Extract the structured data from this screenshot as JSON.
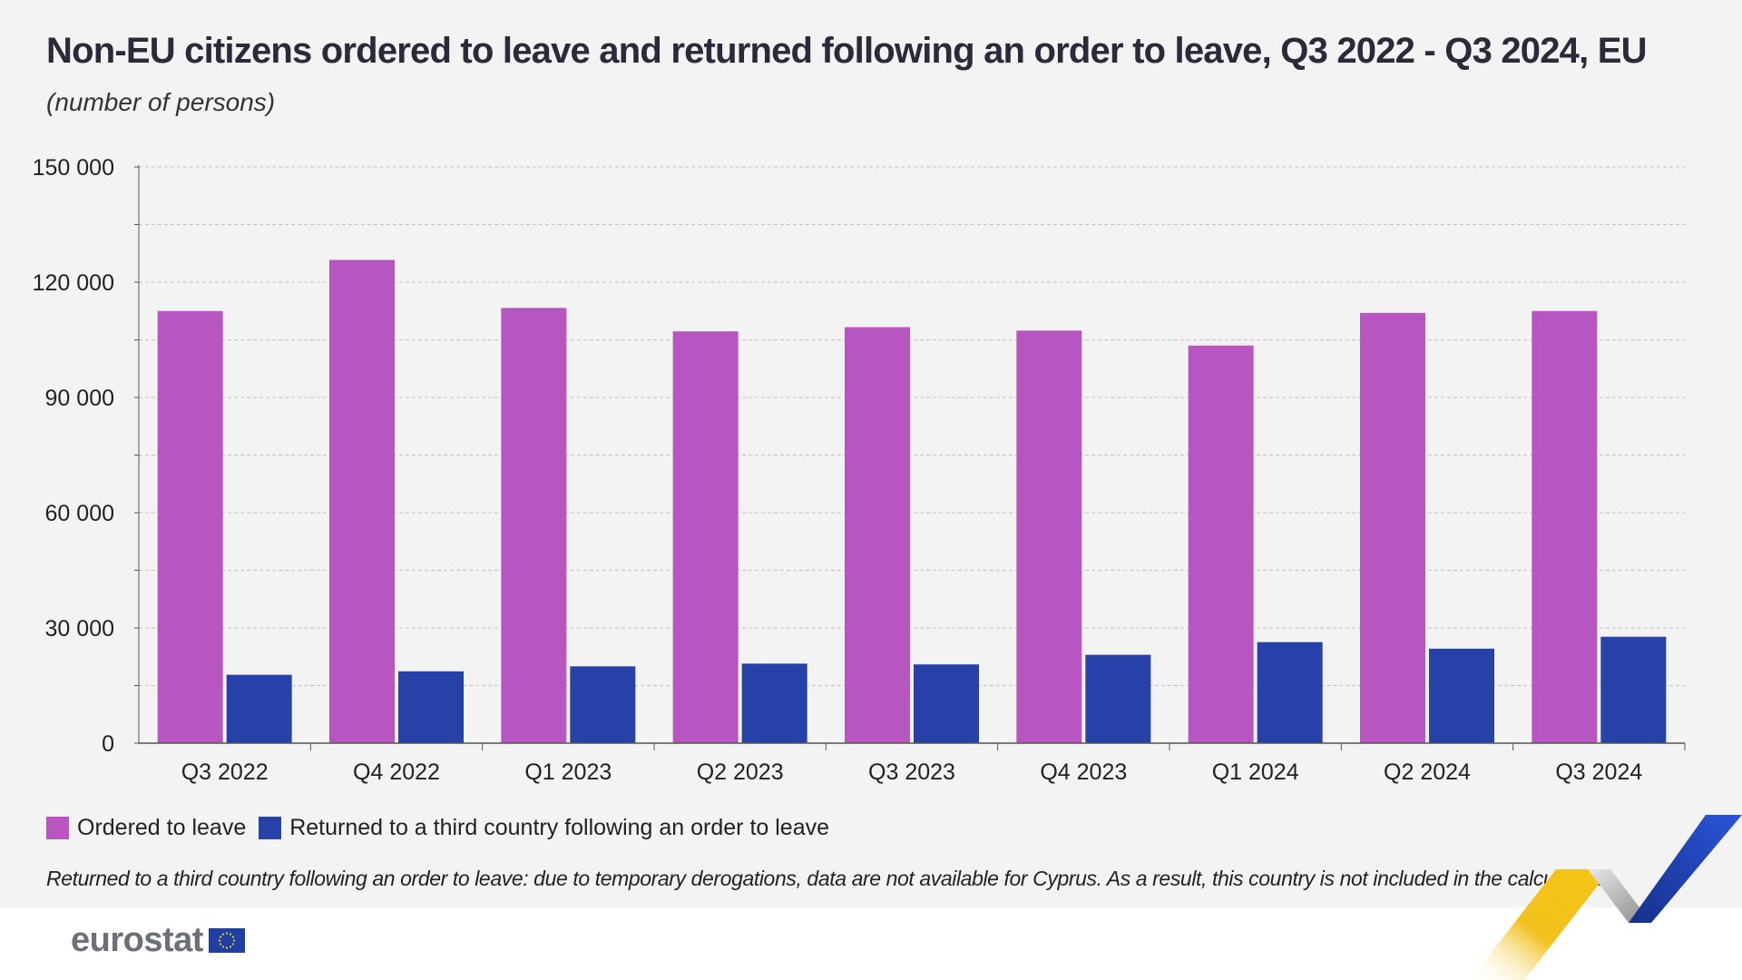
{
  "header": {
    "title": "Non-EU citizens ordered to leave and returned following an order to leave, Q3 2022 - Q3 2024, EU",
    "subtitle": "(number of persons)"
  },
  "chart_data": {
    "type": "bar",
    "title": "Non-EU citizens ordered to leave and returned following an order to leave, Q3 2022 - Q3 2024, EU",
    "subtitle": "(number of persons)",
    "xlabel": "",
    "ylabel": "",
    "ylim": [
      0,
      150000
    ],
    "y_ticks": [
      0,
      30000,
      60000,
      90000,
      120000,
      150000
    ],
    "y_tick_labels": [
      "0",
      "30 000",
      "60 000",
      "90 000",
      "120 000",
      "150 000"
    ],
    "grid": true,
    "legend_position": "bottom-left",
    "categories": [
      "Q3 2022",
      "Q4 2022",
      "Q1 2023",
      "Q2 2023",
      "Q3 2023",
      "Q4 2023",
      "Q1 2024",
      "Q2 2024",
      "Q3 2024"
    ],
    "series": [
      {
        "name": "Ordered to leave",
        "color": "#b756c0",
        "values": [
          112500,
          125800,
          113300,
          107200,
          108300,
          107400,
          103500,
          112000,
          112500
        ]
      },
      {
        "name": "Returned to a third country following an order to leave",
        "color": "#2642a8",
        "values": [
          17800,
          18700,
          20000,
          20700,
          20500,
          23000,
          26300,
          24600,
          27700
        ]
      }
    ]
  },
  "note": "Returned to a third country following an order to leave: due to temporary derogations, data are not available for Cyprus. As a result, this country is not included in the calculations.",
  "logo": {
    "text": "eurostat"
  },
  "colors": {
    "panel": "#f3f3f3",
    "title": "#2a2a3a",
    "accent_yellow": "#f2c11c",
    "accent_blue": "#1f49c9"
  }
}
